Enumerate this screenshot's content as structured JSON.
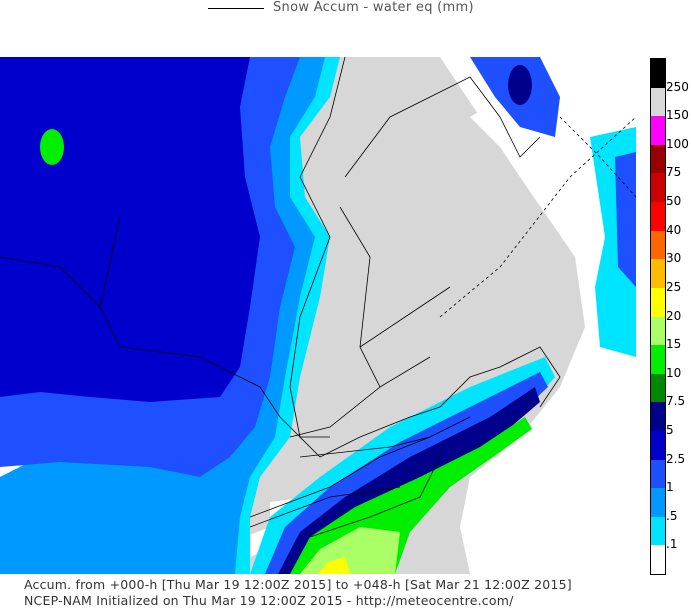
{
  "header": {
    "title": "Snow Accum - water eq (mm)"
  },
  "legend": {
    "levels": [
      {
        "label": "250",
        "color": "#000000"
      },
      {
        "label": "150",
        "color": "#d9d9d9"
      },
      {
        "label": "100",
        "color": "#ff00ff"
      },
      {
        "label": "75",
        "color": "#990000"
      },
      {
        "label": "50",
        "color": "#cc0000"
      },
      {
        "label": "40",
        "color": "#ff0000"
      },
      {
        "label": "30",
        "color": "#ff6600"
      },
      {
        "label": "25",
        "color": "#ffbb00"
      },
      {
        "label": "20",
        "color": "#ffff00"
      },
      {
        "label": "15",
        "color": "#aaff66"
      },
      {
        "label": "10",
        "color": "#00ee00"
      },
      {
        "label": "7.5",
        "color": "#008800"
      },
      {
        "label": "5",
        "color": "#00008b"
      },
      {
        "label": "2.5",
        "color": "#0000cd"
      },
      {
        "label": "1",
        "color": "#1e50ff"
      },
      {
        "label": ".5",
        "color": "#0099ff"
      },
      {
        "label": ".1",
        "color": "#00e5ff"
      },
      {
        "label": "",
        "color": "#ffffff"
      }
    ]
  },
  "footer": {
    "line1": "Accum. from +000-h [Thu Mar 19 12:00Z 2015] to +048-h [Sat Mar 21 12:00Z 2015]",
    "line2": "NCEP-NAM Initialized on Thu Mar 19 12:00Z 2015 - http://meteocentre.com/"
  },
  "colors": {
    "land_no_snow": "#d7d7d7",
    "water": "#ffffff"
  }
}
